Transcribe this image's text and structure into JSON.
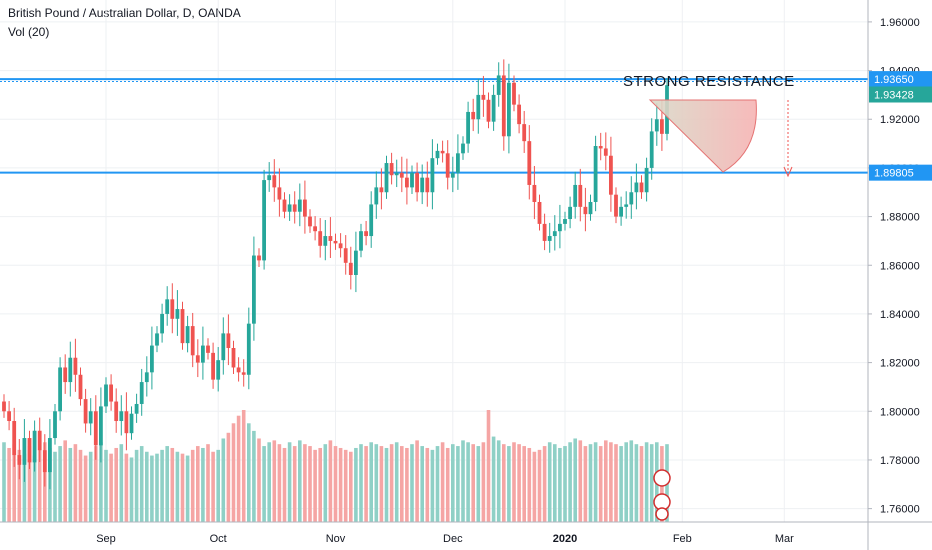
{
  "header": {
    "title": "British Pound / Australian Dollar, D, OANDA",
    "subtitle": "Vol (20)"
  },
  "annotation_text": "STRONG RESISTANCE",
  "price_tags": [
    {
      "value": "1.93650",
      "color": "#2196f3",
      "price": 1.9365
    },
    {
      "value": "1.93428",
      "color": "#26a69a",
      "price": 1.93428
    },
    {
      "value": "1.89805",
      "color": "#2196f3",
      "price": 1.89805
    }
  ],
  "colors": {
    "up": "#26a69a",
    "down": "#ef5350",
    "vol_up": "#8fd0c6",
    "vol_down": "#f5a5a4",
    "line": "#2196f3",
    "grid": "#eef0f3"
  },
  "chart_data": {
    "type": "candlestick",
    "title": "British Pound / Australian Dollar, D, OANDA",
    "y_axis": {
      "ticks": [
        "1.96000",
        "1.94000",
        "1.92000",
        "1.90000",
        "1.88000",
        "1.86000",
        "1.84000",
        "1.82000",
        "1.80000",
        "1.78000",
        "1.76000"
      ],
      "tick_values": [
        1.96,
        1.94,
        1.92,
        1.9,
        1.88,
        1.86,
        1.84,
        1.82,
        1.8,
        1.78,
        1.76
      ],
      "range": [
        1.7545,
        1.969
      ]
    },
    "x_axis": {
      "labels": [
        "Sep",
        "Oct",
        "Nov",
        "Dec",
        "2020",
        "Feb",
        "Mar"
      ],
      "label_bars": [
        20,
        42,
        65,
        88,
        110,
        133,
        153
      ]
    },
    "horizontal_lines": [
      {
        "price": 1.9365,
        "style": "solid"
      },
      {
        "price": 1.9355,
        "style": "dotted"
      },
      {
        "price": 1.89805,
        "style": "solid"
      }
    ],
    "closes": [
      1.8,
      1.796,
      1.782,
      1.778,
      1.789,
      1.779,
      1.792,
      1.784,
      1.775,
      1.789,
      1.8,
      1.818,
      1.812,
      1.822,
      1.815,
      1.805,
      1.795,
      1.8,
      1.786,
      1.802,
      1.811,
      1.804,
      1.796,
      1.8,
      1.791,
      1.799,
      1.803,
      1.812,
      1.816,
      1.827,
      1.832,
      1.84,
      1.846,
      1.838,
      1.842,
      1.828,
      1.835,
      1.823,
      1.82,
      1.827,
      1.824,
      1.813,
      1.821,
      1.832,
      1.826,
      1.818,
      1.816,
      1.815,
      1.836,
      1.864,
      1.862,
      1.895,
      1.897,
      1.892,
      1.887,
      1.882,
      1.885,
      1.882,
      1.887,
      1.88,
      1.876,
      1.874,
      1.868,
      1.872,
      1.87,
      1.869,
      1.867,
      1.861,
      1.856,
      1.866,
      1.874,
      1.872,
      1.885,
      1.892,
      1.89,
      1.902,
      1.897,
      1.898,
      1.896,
      1.892,
      1.898,
      1.89,
      1.896,
      1.89,
      1.904,
      1.907,
      1.906,
      1.896,
      1.898,
      1.906,
      1.91,
      1.923,
      1.92,
      1.93,
      1.928,
      1.919,
      1.93,
      1.938,
      1.913,
      1.935,
      1.926,
      1.918,
      1.911,
      1.893,
      1.886,
      1.877,
      1.87,
      1.872,
      1.874,
      1.877,
      1.879,
      1.884,
      1.893,
      1.884,
      1.881,
      1.886,
      1.909,
      1.908,
      1.905,
      1.889,
      1.88,
      1.884,
      1.885,
      1.89,
      1.894,
      1.89,
      1.9,
      1.915,
      1.92,
      1.914,
      1.934
    ],
    "volumes": [
      420,
      390,
      410,
      380,
      360,
      400,
      350,
      380,
      420,
      390,
      370,
      400,
      430,
      390,
      410,
      380,
      350,
      370,
      400,
      420,
      380,
      360,
      390,
      410,
      360,
      340,
      380,
      400,
      370,
      350,
      360,
      380,
      400,
      390,
      370,
      360,
      350,
      380,
      400,
      390,
      410,
      370,
      380,
      440,
      470,
      520,
      560,
      590,
      520,
      480,
      440,
      400,
      420,
      430,
      410,
      390,
      420,
      400,
      430,
      410,
      400,
      380,
      390,
      410,
      430,
      400,
      390,
      380,
      370,
      390,
      410,
      400,
      420,
      410,
      400,
      390,
      410,
      420,
      400,
      390,
      410,
      430,
      400,
      390,
      380,
      400,
      420,
      390,
      410,
      400,
      430,
      420,
      410,
      400,
      420,
      590,
      450,
      430,
      410,
      400,
      420,
      410,
      400,
      390,
      370,
      380,
      400,
      420,
      410,
      390,
      400,
      420,
      440,
      430,
      400,
      410,
      420,
      400,
      430,
      420,
      410,
      400,
      420,
      430,
      410,
      400,
      420,
      410,
      420,
      400,
      410
    ]
  }
}
